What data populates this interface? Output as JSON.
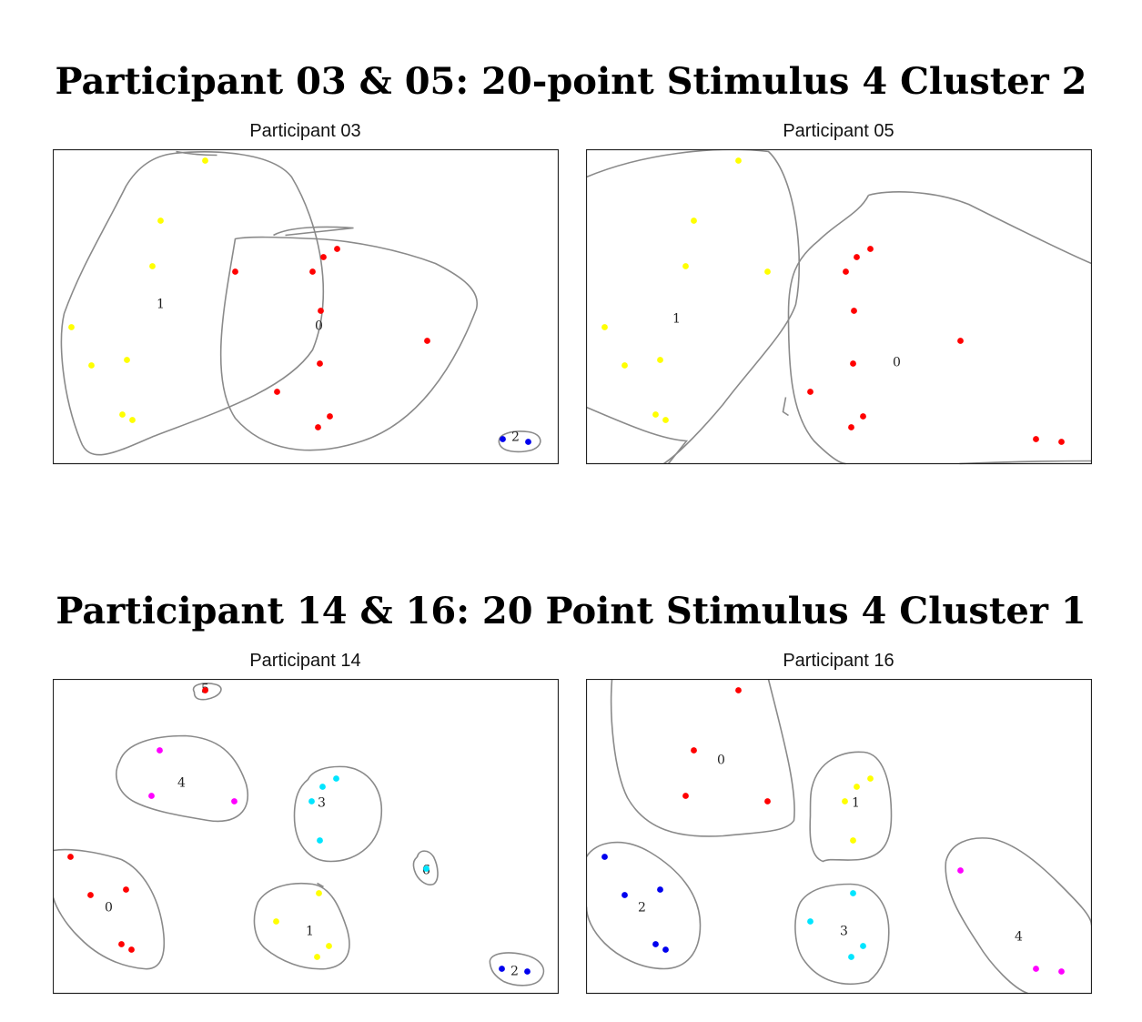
{
  "groups": [
    {
      "title": "Participant 03 & 05: 20-point Stimulus 4 Cluster 2"
    },
    {
      "title": "Participant 14 & 16: 20 Point Stimulus 4 Cluster 1"
    }
  ],
  "colors": {
    "red": "#ff0000",
    "yellow": "#ffff00",
    "blue": "#0000ee",
    "cyan": "#00e5ff",
    "magenta": "#ff00ff",
    "outline": "#8a8a8a"
  },
  "chart_data": [
    {
      "type": "scatter",
      "title": "Participant 03",
      "xlim": [
        0,
        555
      ],
      "ylim": [
        0,
        345
      ],
      "points": [
        {
          "x": 167,
          "y": 12,
          "color": "yellow"
        },
        {
          "x": 118,
          "y": 78,
          "color": "yellow"
        },
        {
          "x": 109,
          "y": 128,
          "color": "yellow"
        },
        {
          "x": 20,
          "y": 195,
          "color": "yellow"
        },
        {
          "x": 42,
          "y": 237,
          "color": "yellow"
        },
        {
          "x": 81,
          "y": 231,
          "color": "yellow"
        },
        {
          "x": 76,
          "y": 291,
          "color": "yellow"
        },
        {
          "x": 87,
          "y": 297,
          "color": "yellow"
        },
        {
          "x": 312,
          "y": 109,
          "color": "red"
        },
        {
          "x": 297,
          "y": 118,
          "color": "red"
        },
        {
          "x": 200,
          "y": 134,
          "color": "red"
        },
        {
          "x": 285,
          "y": 134,
          "color": "red"
        },
        {
          "x": 294,
          "y": 177,
          "color": "red"
        },
        {
          "x": 411,
          "y": 210,
          "color": "red"
        },
        {
          "x": 293,
          "y": 235,
          "color": "red"
        },
        {
          "x": 246,
          "y": 266,
          "color": "red"
        },
        {
          "x": 304,
          "y": 293,
          "color": "red"
        },
        {
          "x": 291,
          "y": 305,
          "color": "red"
        },
        {
          "x": 494,
          "y": 318,
          "color": "blue"
        },
        {
          "x": 522,
          "y": 321,
          "color": "blue"
        }
      ],
      "cluster_labels": [
        {
          "text": "1",
          "x": 118,
          "y": 169
        },
        {
          "text": "0",
          "x": 292,
          "y": 193
        },
        {
          "text": "2",
          "x": 508,
          "y": 315
        }
      ],
      "outlines": [
        "M133,4 C175,0 240,2 262,30 C292,80 310,160 285,220 C255,265 175,290 110,315 C70,332 40,348 30,320 C10,270 5,210 12,180 C30,130 55,90 80,40 C95,15 115,6 133,4 Z",
        "M135,2 C145,4 160,6 180,6",
        "M200,98 C190,160 170,250 200,295 C230,330 280,340 340,320 C400,300 440,240 465,175 C470,155 450,140 420,125 C380,110 330,100 290,98 C245,96 215,95 200,98 Z",
        "M242,94 C260,84 300,84 330,86 C310,88 275,92 255,94",
        "M490,322 C488,312 505,308 522,310 C538,312 540,325 526,330 C510,334 492,332 490,322 Z"
      ]
    },
    {
      "type": "scatter",
      "title": "Participant 05",
      "xlim": [
        0,
        555
      ],
      "ylim": [
        0,
        345
      ],
      "points": [
        {
          "x": 167,
          "y": 12,
          "color": "yellow"
        },
        {
          "x": 118,
          "y": 78,
          "color": "yellow"
        },
        {
          "x": 109,
          "y": 128,
          "color": "yellow"
        },
        {
          "x": 199,
          "y": 134,
          "color": "yellow"
        },
        {
          "x": 20,
          "y": 195,
          "color": "yellow"
        },
        {
          "x": 42,
          "y": 237,
          "color": "yellow"
        },
        {
          "x": 81,
          "y": 231,
          "color": "yellow"
        },
        {
          "x": 76,
          "y": 291,
          "color": "yellow"
        },
        {
          "x": 87,
          "y": 297,
          "color": "yellow"
        },
        {
          "x": 312,
          "y": 109,
          "color": "red"
        },
        {
          "x": 297,
          "y": 118,
          "color": "red"
        },
        {
          "x": 285,
          "y": 134,
          "color": "red"
        },
        {
          "x": 294,
          "y": 177,
          "color": "red"
        },
        {
          "x": 411,
          "y": 210,
          "color": "red"
        },
        {
          "x": 293,
          "y": 235,
          "color": "red"
        },
        {
          "x": 246,
          "y": 266,
          "color": "red"
        },
        {
          "x": 304,
          "y": 293,
          "color": "red"
        },
        {
          "x": 291,
          "y": 305,
          "color": "red"
        },
        {
          "x": 494,
          "y": 318,
          "color": "red"
        },
        {
          "x": 522,
          "y": 321,
          "color": "red"
        }
      ],
      "cluster_labels": [
        {
          "text": "1",
          "x": 99,
          "y": 185
        },
        {
          "text": "0",
          "x": 341,
          "y": 233
        }
      ],
      "outlines": [
        "M0,30 C60,5 140,-5 200,2 C230,30 240,120 230,170 C220,200 180,240 150,280 C125,310 100,335 85,345",
        "M0,283 C40,300 80,318 110,320 L90,345",
        "M310,50 C330,44 380,44 420,60 C460,80 520,110 555,125",
        "M310,50 C300,70 275,80 255,100 C230,120 222,140 222,180 C222,240 225,290 250,320 C270,340 280,345 285,345",
        "M410,345 C460,343 520,342 555,342",
        "M219,272 L216,288 L222,292"
      ]
    },
    {
      "type": "scatter",
      "title": "Participant 14",
      "xlim": [
        0,
        555
      ],
      "ylim": [
        0,
        345
      ],
      "points": [
        {
          "x": 117,
          "y": 78,
          "color": "magenta"
        },
        {
          "x": 108,
          "y": 128,
          "color": "magenta"
        },
        {
          "x": 199,
          "y": 134,
          "color": "magenta"
        },
        {
          "x": 311,
          "y": 109,
          "color": "cyan"
        },
        {
          "x": 296,
          "y": 118,
          "color": "cyan"
        },
        {
          "x": 284,
          "y": 134,
          "color": "cyan"
        },
        {
          "x": 293,
          "y": 177,
          "color": "cyan"
        },
        {
          "x": 410,
          "y": 208,
          "color": "cyan"
        },
        {
          "x": 19,
          "y": 195,
          "color": "red"
        },
        {
          "x": 41,
          "y": 237,
          "color": "red"
        },
        {
          "x": 80,
          "y": 231,
          "color": "red"
        },
        {
          "x": 75,
          "y": 291,
          "color": "red"
        },
        {
          "x": 86,
          "y": 297,
          "color": "red"
        },
        {
          "x": 292,
          "y": 235,
          "color": "yellow"
        },
        {
          "x": 245,
          "y": 266,
          "color": "yellow"
        },
        {
          "x": 303,
          "y": 293,
          "color": "yellow"
        },
        {
          "x": 290,
          "y": 305,
          "color": "yellow"
        },
        {
          "x": 493,
          "y": 318,
          "color": "blue"
        },
        {
          "x": 521,
          "y": 321,
          "color": "blue"
        },
        {
          "x": 167,
          "y": 12,
          "color": "red"
        }
      ],
      "cluster_labels": [
        {
          "text": "5",
          "x": 167,
          "y": 10
        },
        {
          "text": "4",
          "x": 141,
          "y": 113
        },
        {
          "text": "3",
          "x": 295,
          "y": 135
        },
        {
          "text": "6",
          "x": 410,
          "y": 209
        },
        {
          "text": "0",
          "x": 61,
          "y": 250
        },
        {
          "text": "1",
          "x": 282,
          "y": 276
        },
        {
          "text": "2",
          "x": 507,
          "y": 320
        }
      ],
      "outlines": [
        "M155,14 C150,6 165,2 180,6 C190,10 182,20 168,22 C158,23 155,20 155,14 Z",
        "M73,90 C80,70 110,62 145,62 C180,64 200,80 212,115 C220,145 200,160 170,155 C140,150 110,145 90,135 C70,125 65,105 73,90 Z",
        "M280,110 C285,100 300,95 320,96 C345,98 365,120 360,155 C355,185 330,200 305,200 C280,200 265,180 265,150 C265,130 270,118 280,110 Z",
        "M400,195 C402,187 412,186 418,195 C423,205 425,220 418,225 C410,228 400,220 397,210 C394,200 398,197 400,195 Z",
        "M0,188 C20,185 50,190 75,198 C100,210 115,240 120,270 C125,300 120,320 100,318 C75,316 50,305 30,285 C12,268 3,250 0,240",
        "M225,245 C235,228 260,222 285,225 C305,228 315,250 323,275 C330,300 322,315 300,318 C275,320 250,310 232,295 C220,283 218,262 225,245 Z",
        "M480,312 C478,302 495,298 515,302 C535,306 545,318 535,330 C528,338 508,338 495,332 C485,326 481,320 480,312 Z",
        "M290,224 L297,228"
      ]
    },
    {
      "type": "scatter",
      "title": "Participant 16",
      "xlim": [
        0,
        555
      ],
      "ylim": [
        0,
        345
      ],
      "points": [
        {
          "x": 167,
          "y": 12,
          "color": "red"
        },
        {
          "x": 118,
          "y": 78,
          "color": "red"
        },
        {
          "x": 109,
          "y": 128,
          "color": "red"
        },
        {
          "x": 199,
          "y": 134,
          "color": "red"
        },
        {
          "x": 312,
          "y": 109,
          "color": "yellow"
        },
        {
          "x": 297,
          "y": 118,
          "color": "yellow"
        },
        {
          "x": 284,
          "y": 134,
          "color": "yellow"
        },
        {
          "x": 293,
          "y": 177,
          "color": "yellow"
        },
        {
          "x": 20,
          "y": 195,
          "color": "blue"
        },
        {
          "x": 42,
          "y": 237,
          "color": "blue"
        },
        {
          "x": 81,
          "y": 231,
          "color": "blue"
        },
        {
          "x": 76,
          "y": 291,
          "color": "blue"
        },
        {
          "x": 87,
          "y": 297,
          "color": "blue"
        },
        {
          "x": 293,
          "y": 235,
          "color": "cyan"
        },
        {
          "x": 246,
          "y": 266,
          "color": "cyan"
        },
        {
          "x": 304,
          "y": 293,
          "color": "cyan"
        },
        {
          "x": 291,
          "y": 305,
          "color": "cyan"
        },
        {
          "x": 411,
          "y": 210,
          "color": "magenta"
        },
        {
          "x": 494,
          "y": 318,
          "color": "magenta"
        },
        {
          "x": 522,
          "y": 321,
          "color": "magenta"
        }
      ],
      "cluster_labels": [
        {
          "text": "0",
          "x": 148,
          "y": 88
        },
        {
          "text": "1",
          "x": 296,
          "y": 135
        },
        {
          "text": "2",
          "x": 61,
          "y": 250
        },
        {
          "text": "3",
          "x": 283,
          "y": 276
        },
        {
          "text": "4",
          "x": 475,
          "y": 282
        }
      ],
      "outlines": [
        "M28,0 C25,40 30,100 45,130 C65,165 100,175 150,172 C190,168 220,168 228,155 C232,120 215,60 200,0",
        "M248,118 C255,90 280,78 305,80 C325,82 335,110 335,150 C335,180 325,195 300,198 C280,200 268,196 260,200 C245,195 245,170 246,150 C246,135 246,125 248,118 Z",
        "M0,195 C10,178 40,172 70,190 C100,208 125,235 125,270 C125,300 110,318 85,318 C60,318 35,305 20,290 C5,275 0,260 0,250",
        "M235,245 C245,230 265,225 290,225 C315,225 330,245 332,270 C334,300 325,320 310,332 C280,340 255,330 240,310 C228,295 226,262 235,245 Z",
        "M395,200 C400,180 420,172 445,175 C470,180 495,200 520,225 C540,245 555,260 555,270",
        "M395,200 C392,230 410,260 430,290 C445,315 470,340 485,345"
      ]
    }
  ]
}
